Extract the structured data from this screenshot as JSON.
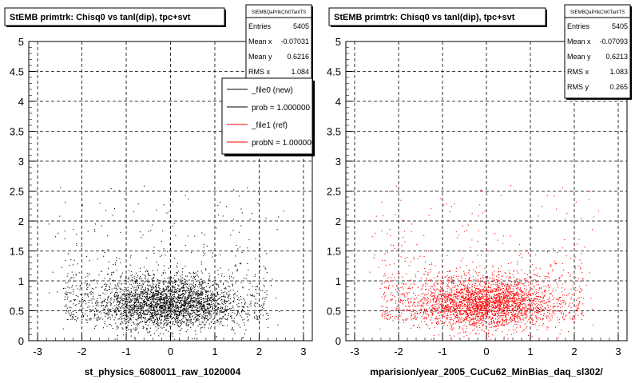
{
  "chart_data": [
    {
      "type": "scatter",
      "title": "StEMB primtrk: Chisq0 vs tanl(dip), tpc+svt",
      "xlabel": "st_physics_6080011_raw_1020004",
      "ylabel": "",
      "xlim": [
        -3.2,
        3.2
      ],
      "ylim": [
        0,
        5
      ],
      "x_ticks": [
        "-3",
        "-2",
        "-1",
        "0",
        "1",
        "2",
        "3"
      ],
      "y_ticks": [
        "0",
        "0.5",
        "1",
        "1.5",
        "2",
        "2.5",
        "3",
        "3.5",
        "4",
        "4.5",
        "5"
      ],
      "grid": true,
      "marker_color": "#000000",
      "stats": {
        "name": "StEMBQaPrtkChi0TanlTS",
        "rows": [
          {
            "label": "Entries",
            "value": "5405"
          },
          {
            "label": "Mean x",
            "value": "-0.07031"
          },
          {
            "label": "Mean y",
            "value": "0.6216"
          },
          {
            "label": "RMS x",
            "value": "1.084"
          }
        ]
      },
      "legend": {
        "placement": "top-right",
        "entries": [
          {
            "label": "_file0 (new)",
            "color": "#000000"
          },
          {
            "label": "prob = 1.000000",
            "color": "#000000"
          },
          {
            "label": "_file1 (ref)",
            "color": "#ff0000"
          },
          {
            "label": "probN = 1.000000",
            "color": "#ff0000"
          }
        ]
      },
      "series": [
        {
          "values_summary": {
            "count": 5405,
            "mean_x": -0.07031,
            "mean_y": 0.6216,
            "rms_x": 1.084
          }
        }
      ]
    },
    {
      "type": "scatter",
      "title": "StEMB primtrk: Chisq0 vs tanl(dip), tpc+svt",
      "xlabel": "mparision/year_2005_CuCu62_MinBias_daq_sl302/",
      "ylabel": "",
      "xlim": [
        -3.2,
        3.2
      ],
      "ylim": [
        0,
        5
      ],
      "x_ticks": [
        "-3",
        "-2",
        "-1",
        "0",
        "1",
        "2",
        "3"
      ],
      "y_ticks": [
        "0",
        "0.5",
        "1",
        "1.5",
        "2",
        "2.5",
        "3",
        "3.5",
        "4",
        "4.5",
        "5"
      ],
      "grid": true,
      "marker_color": "#ff0000",
      "stats": {
        "name": "StEMBQaPrtkChi0TanlTS",
        "rows": [
          {
            "label": "Entries",
            "value": "5405"
          },
          {
            "label": "Mean x",
            "value": "-0.07093"
          },
          {
            "label": "Mean y",
            "value": "0.6213"
          },
          {
            "label": "RMS x",
            "value": "1.083"
          },
          {
            "label": "RMS y",
            "value": "0.265"
          }
        ]
      },
      "series": [
        {
          "values_summary": {
            "count": 5405,
            "mean_x": -0.07093,
            "mean_y": 0.6213,
            "rms_x": 1.083,
            "rms_y": 0.265
          }
        }
      ]
    }
  ]
}
